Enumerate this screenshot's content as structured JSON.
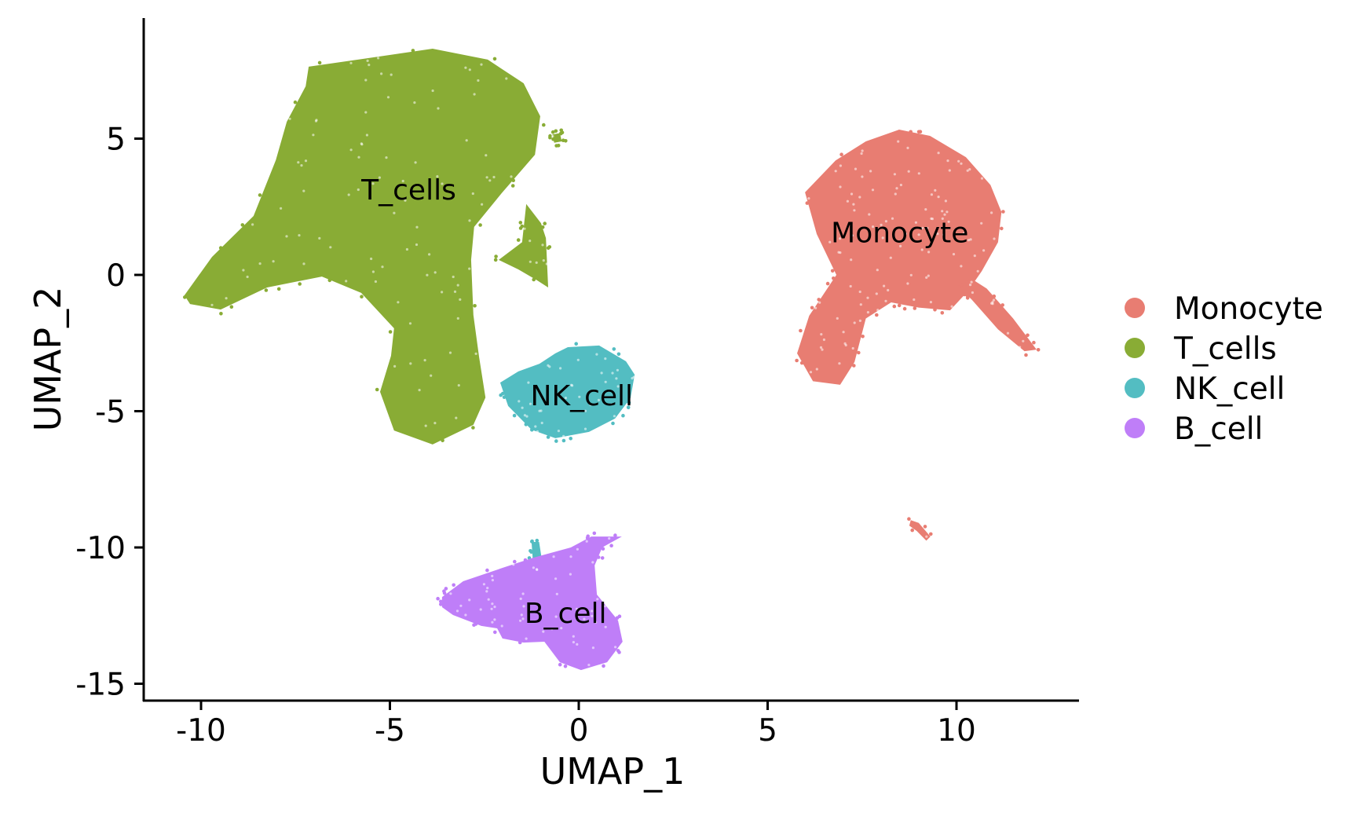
{
  "chart_data": {
    "type": "scatter",
    "title": "",
    "xlabel": "UMAP_1",
    "ylabel": "UMAP_2",
    "xlim": [
      -11.5,
      13.2
    ],
    "ylim": [
      -15.6,
      9.4
    ],
    "x_ticks": [
      -10,
      -5,
      0,
      5,
      10
    ],
    "y_ticks": [
      5,
      0,
      -5,
      -10,
      -15
    ],
    "x_tick_labels": [
      "-10",
      "-5",
      "0",
      "5",
      "10"
    ],
    "y_tick_labels": [
      "5",
      "0",
      "-5",
      "-10",
      "-15"
    ],
    "grid": false,
    "legend_position": "right",
    "series": [
      {
        "name": "Monocyte",
        "color": "#E87D72",
        "label_position": [
          8.5,
          1.2
        ],
        "regions": [
          [
            [
              8.48,
              5.33
            ],
            [
              9.3,
              5.1
            ],
            [
              10.25,
              4.32
            ],
            [
              10.9,
              3.3
            ],
            [
              11.19,
              2.31
            ],
            [
              11.1,
              1.2
            ],
            [
              10.67,
              0.14
            ],
            [
              10.3,
              -0.6
            ],
            [
              9.83,
              -1.3
            ],
            [
              9.0,
              -1.2
            ],
            [
              8.27,
              -1.01
            ],
            [
              7.6,
              -1.6
            ],
            [
              7.3,
              -3.2
            ],
            [
              6.92,
              -4.03
            ],
            [
              6.2,
              -3.9
            ],
            [
              5.78,
              -2.88
            ],
            [
              6.1,
              -1.5
            ],
            [
              6.82,
              0.0
            ],
            [
              6.3,
              1.5
            ],
            [
              5.99,
              3.03
            ],
            [
              6.8,
              4.2
            ],
            [
              7.6,
              4.9
            ]
          ],
          [
            [
              10.35,
              -0.1
            ],
            [
              10.8,
              -0.5
            ],
            [
              11.5,
              -1.6
            ],
            [
              12.12,
              -2.74
            ],
            [
              11.8,
              -2.8
            ],
            [
              11.1,
              -2.0
            ],
            [
              10.4,
              -0.9
            ],
            [
              10.1,
              -0.5
            ]
          ],
          [
            [
              8.79,
              -9.0
            ],
            [
              9.0,
              -9.1
            ],
            [
              9.31,
              -9.6
            ],
            [
              9.2,
              -9.75
            ],
            [
              8.95,
              -9.4
            ],
            [
              8.75,
              -9.2
            ]
          ]
        ]
      },
      {
        "name": "T_cells",
        "color": "#89AC35",
        "label_position": [
          -4.5,
          2.77
        ],
        "regions": [
          [
            [
              -7.15,
              7.64
            ],
            [
              -5.7,
              7.93
            ],
            [
              -3.87,
              8.3
            ],
            [
              -2.41,
              7.9
            ],
            [
              -1.46,
              7.03
            ],
            [
              -1.02,
              5.82
            ],
            [
              -1.16,
              4.41
            ],
            [
              -2.04,
              3.0
            ],
            [
              -2.77,
              1.76
            ],
            [
              -2.85,
              0.55
            ],
            [
              -2.79,
              -1.47
            ],
            [
              -2.64,
              -3.0
            ],
            [
              -2.47,
              -4.5
            ],
            [
              -2.79,
              -5.5
            ],
            [
              -3.87,
              -6.22
            ],
            [
              -4.89,
              -5.71
            ],
            [
              -5.26,
              -4.29
            ],
            [
              -4.97,
              -2.97
            ],
            [
              -4.89,
              -1.96
            ],
            [
              -5.76,
              -0.66
            ],
            [
              -6.8,
              -0.06
            ],
            [
              -8.25,
              -0.46
            ],
            [
              -9.48,
              -1.27
            ],
            [
              -10.29,
              -1.07
            ],
            [
              -10.44,
              -0.75
            ],
            [
              -9.71,
              0.66
            ],
            [
              -8.61,
              2.16
            ],
            [
              -8.02,
              4.21
            ],
            [
              -7.73,
              5.62
            ],
            [
              -7.23,
              6.92
            ]
          ],
          [
            [
              -1.39,
              2.6
            ],
            [
              -1.0,
              1.9
            ],
            [
              -0.87,
              1.35
            ],
            [
              -0.81,
              -0.46
            ],
            [
              -1.1,
              -0.2
            ],
            [
              -1.6,
              0.2
            ],
            [
              -2.12,
              0.55
            ],
            [
              -1.5,
              1.2
            ]
          ],
          [
            [
              -0.7,
              5.15
            ],
            [
              -0.5,
              5.2
            ],
            [
              -0.45,
              4.9
            ],
            [
              -0.65,
              4.85
            ]
          ]
        ]
      },
      {
        "name": "NK_cell",
        "color": "#53BDC2",
        "label_position": [
          0.08,
          -4.78
        ],
        "regions": [
          [
            [
              -0.29,
              -2.65
            ],
            [
              0.54,
              -2.59
            ],
            [
              1.25,
              -3.17
            ],
            [
              1.48,
              -3.66
            ],
            [
              1.37,
              -4.52
            ],
            [
              0.96,
              -5.27
            ],
            [
              0.27,
              -5.76
            ],
            [
              -0.62,
              -5.99
            ],
            [
              -1.25,
              -5.68
            ],
            [
              -1.87,
              -4.81
            ],
            [
              -2.08,
              -3.95
            ],
            [
              -1.6,
              -3.54
            ],
            [
              -1.04,
              -3.26
            ],
            [
              -0.62,
              -2.88
            ]
          ],
          [
            [
              -1.25,
              -9.8
            ],
            [
              -1.05,
              -9.8
            ],
            [
              -0.85,
              -11.6
            ],
            [
              -1.05,
              -11.7
            ],
            [
              -1.2,
              -10.8
            ]
          ]
        ]
      },
      {
        "name": "B_cell",
        "color": "#BF7EF8",
        "label_position": [
          -0.35,
          -12.77
        ],
        "regions": [
          [
            [
              -3.62,
              -11.82
            ],
            [
              -3.06,
              -11.24
            ],
            [
              -2.02,
              -10.75
            ],
            [
              -1.19,
              -10.37
            ],
            [
              -0.21,
              -10.0
            ],
            [
              0.33,
              -9.6
            ],
            [
              1.14,
              -9.6
            ],
            [
              0.62,
              -10.0
            ],
            [
              0.42,
              -10.66
            ],
            [
              0.48,
              -11.73
            ],
            [
              1.04,
              -12.68
            ],
            [
              1.16,
              -13.46
            ],
            [
              0.75,
              -14.21
            ],
            [
              0.06,
              -14.5
            ],
            [
              -0.5,
              -14.21
            ],
            [
              -0.91,
              -13.46
            ],
            [
              -1.46,
              -13.49
            ],
            [
              -2.02,
              -13.34
            ],
            [
              -2.16,
              -12.97
            ],
            [
              -2.58,
              -12.88
            ],
            [
              -3.33,
              -12.48
            ],
            [
              -3.62,
              -12.19
            ]
          ]
        ]
      }
    ]
  },
  "legend": {
    "items": [
      {
        "label": "Monocyte",
        "color": "#E87D72"
      },
      {
        "label": "T_cells",
        "color": "#89AC35"
      },
      {
        "label": "NK_cell",
        "color": "#53BDC2"
      },
      {
        "label": "B_cell",
        "color": "#BF7EF8"
      }
    ]
  }
}
